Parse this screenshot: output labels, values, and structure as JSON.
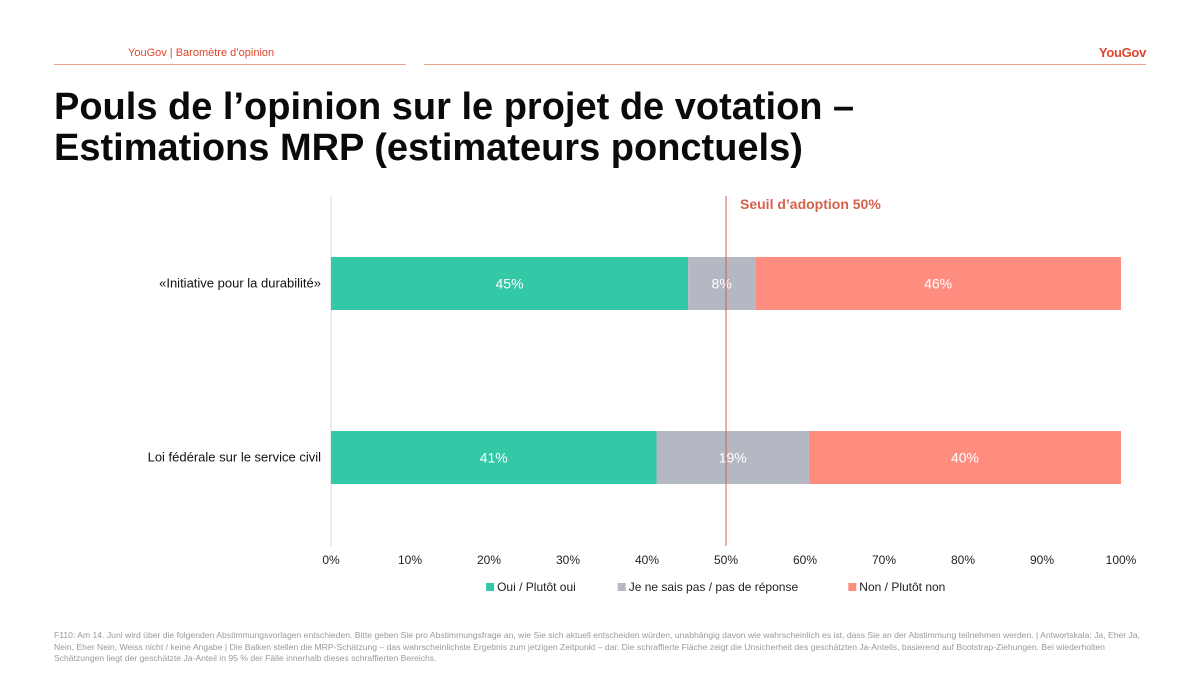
{
  "header": {
    "left_text": "YouGov | Baromètre d’opinion",
    "logo_text": "YouGov"
  },
  "title": {
    "line1": "Pouls de l’opinion sur le projet de votation –",
    "line2": "Estimations MRP (estimateurs ponctuels)"
  },
  "colors": {
    "yes": "#33c9a6",
    "dontknow": "#b3b8c3",
    "no": "#fe8d80",
    "threshold": "#d6614b",
    "accent": "#e0452b"
  },
  "chart_data": {
    "type": "bar",
    "orientation": "horizontal",
    "stacked": true,
    "categories": [
      "«Initiative pour la durabilité»",
      "Loi fédérale sur le service civil"
    ],
    "series": [
      {
        "name": "Oui / Plutôt oui",
        "values": [
          45.2,
          41.2
        ],
        "labels": [
          "45%",
          "41%"
        ]
      },
      {
        "name": "Je ne sais pas / pas de réponse",
        "values": [
          8.5,
          19.3
        ],
        "labels": [
          "8%",
          "19%"
        ]
      },
      {
        "name": "Non / Plutôt non",
        "values": [
          46.3,
          39.5
        ],
        "labels": [
          "46%",
          "40%"
        ]
      }
    ],
    "xlim": [
      0,
      100
    ],
    "xticks": [
      "0%",
      "10%",
      "20%",
      "30%",
      "40%",
      "50%",
      "60%",
      "70%",
      "80%",
      "90%",
      "100%"
    ],
    "threshold": {
      "value": 50,
      "label": "Seuil d’adoption 50%"
    },
    "legend_position": "bottom"
  },
  "footnote": "F110: Am 14. Juni wird über die folgenden Abstimmungsvorlagen entschieden. Bitte geben Sie pro Abstimmungsfrage an, wie Sie sich aktuell entscheiden würden, unabhängig davon wie wahrscheinlich es ist, dass Sie an der Abstimmung teilnehmen werden. | Antwortskala: Ja, Eher Ja, Nein, Eher Nein, Weiss nicht / keine Angabe | Die Balken stellen die MRP-Schätzung – das wahrscheinlichste Ergebnis zum jetzigen Zeitpunkt – dar. Die schraffierte Fläche zeigt die Unsicherheit des geschätzten Ja-Anteils, basierend auf Bootstrap-Ziehungen. Bei wiederholten Schätzungen liegt der geschätzte Ja-Anteil in 95 % der Fälle innerhalb dieses schraffierten Bereichs."
}
